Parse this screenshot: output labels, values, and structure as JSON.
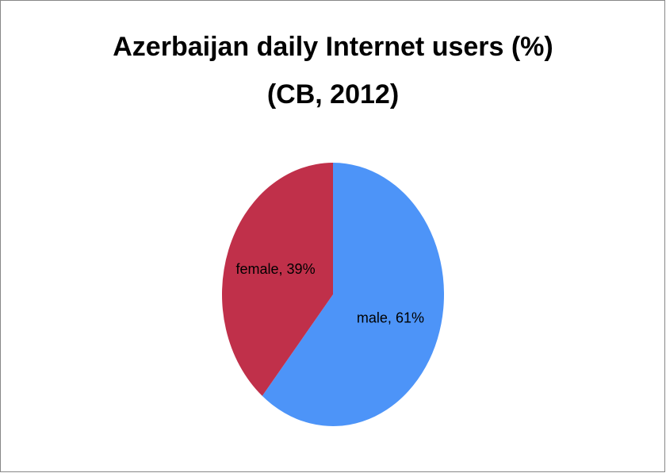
{
  "chart_data": {
    "type": "pie",
    "title": [
      "Azerbaijan daily Internet users (%)",
      "(CB, 2012)"
    ],
    "values": [
      61,
      39
    ],
    "value_labels": [
      "male, 61%",
      "female, 39%"
    ],
    "colors": [
      "#4d94f8",
      "#c0304a"
    ]
  }
}
